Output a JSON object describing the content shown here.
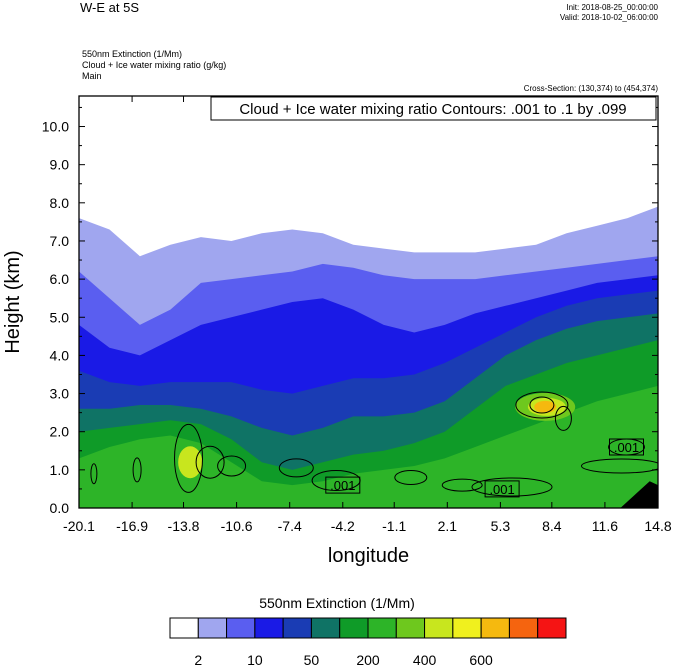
{
  "header": {
    "title": "W-E at 5S",
    "init": "Init: 2018-08-25_00:00:00",
    "valid": "Valid: 2018-10-02_06:00:00",
    "field_line": "550nm Extinction   (1/Mm)",
    "overlay_line": "Cloud + Ice water mixing ratio   (g/kg)",
    "run_name": "Main",
    "cross_section": "Cross-Section: (130,374) to (454,374)"
  },
  "chart_data": {
    "type": "heatmap",
    "title": "W-E at 5S",
    "xlabel": "longitude",
    "ylabel": "Height (km)",
    "xlim": [
      -20.1,
      14.8
    ],
    "ylim": [
      0.0,
      10.8
    ],
    "x_ticks": [
      "-20.1",
      "-16.9",
      "-13.8",
      "-10.6",
      "-7.4",
      "-4.2",
      "-1.1",
      "2.1",
      "5.3",
      "8.4",
      "11.6",
      "14.8"
    ],
    "y_ticks": [
      "0.0",
      "1.0",
      "2.0",
      "3.0",
      "4.0",
      "5.0",
      "6.0",
      "7.0",
      "8.0",
      "9.0",
      "10.0"
    ],
    "contour_info": "Cloud + Ice water mixing ratio Contours: .001 to .1 by .099",
    "contour_labels": [
      {
        "text": ".001",
        "x": -4.2,
        "y": 0.6
      },
      {
        "text": ".001",
        "x": 5.4,
        "y": 0.5
      },
      {
        "text": ".001",
        "x": 12.9,
        "y": 1.6
      }
    ],
    "colorbar": {
      "title": "550nm Extinction  (1/Mm)",
      "colors": [
        "#ffffff",
        "#a0a6ef",
        "#5a5ef0",
        "#1a1ae6",
        "#1a3cb4",
        "#0f7365",
        "#0f9b28",
        "#2db428",
        "#6ec81e",
        "#c8e61e",
        "#f0f01e",
        "#f5b90f",
        "#f5640f",
        "#f51414"
      ],
      "tick_labels": [
        "2",
        "10",
        "50",
        "200",
        "400",
        "600"
      ]
    }
  }
}
